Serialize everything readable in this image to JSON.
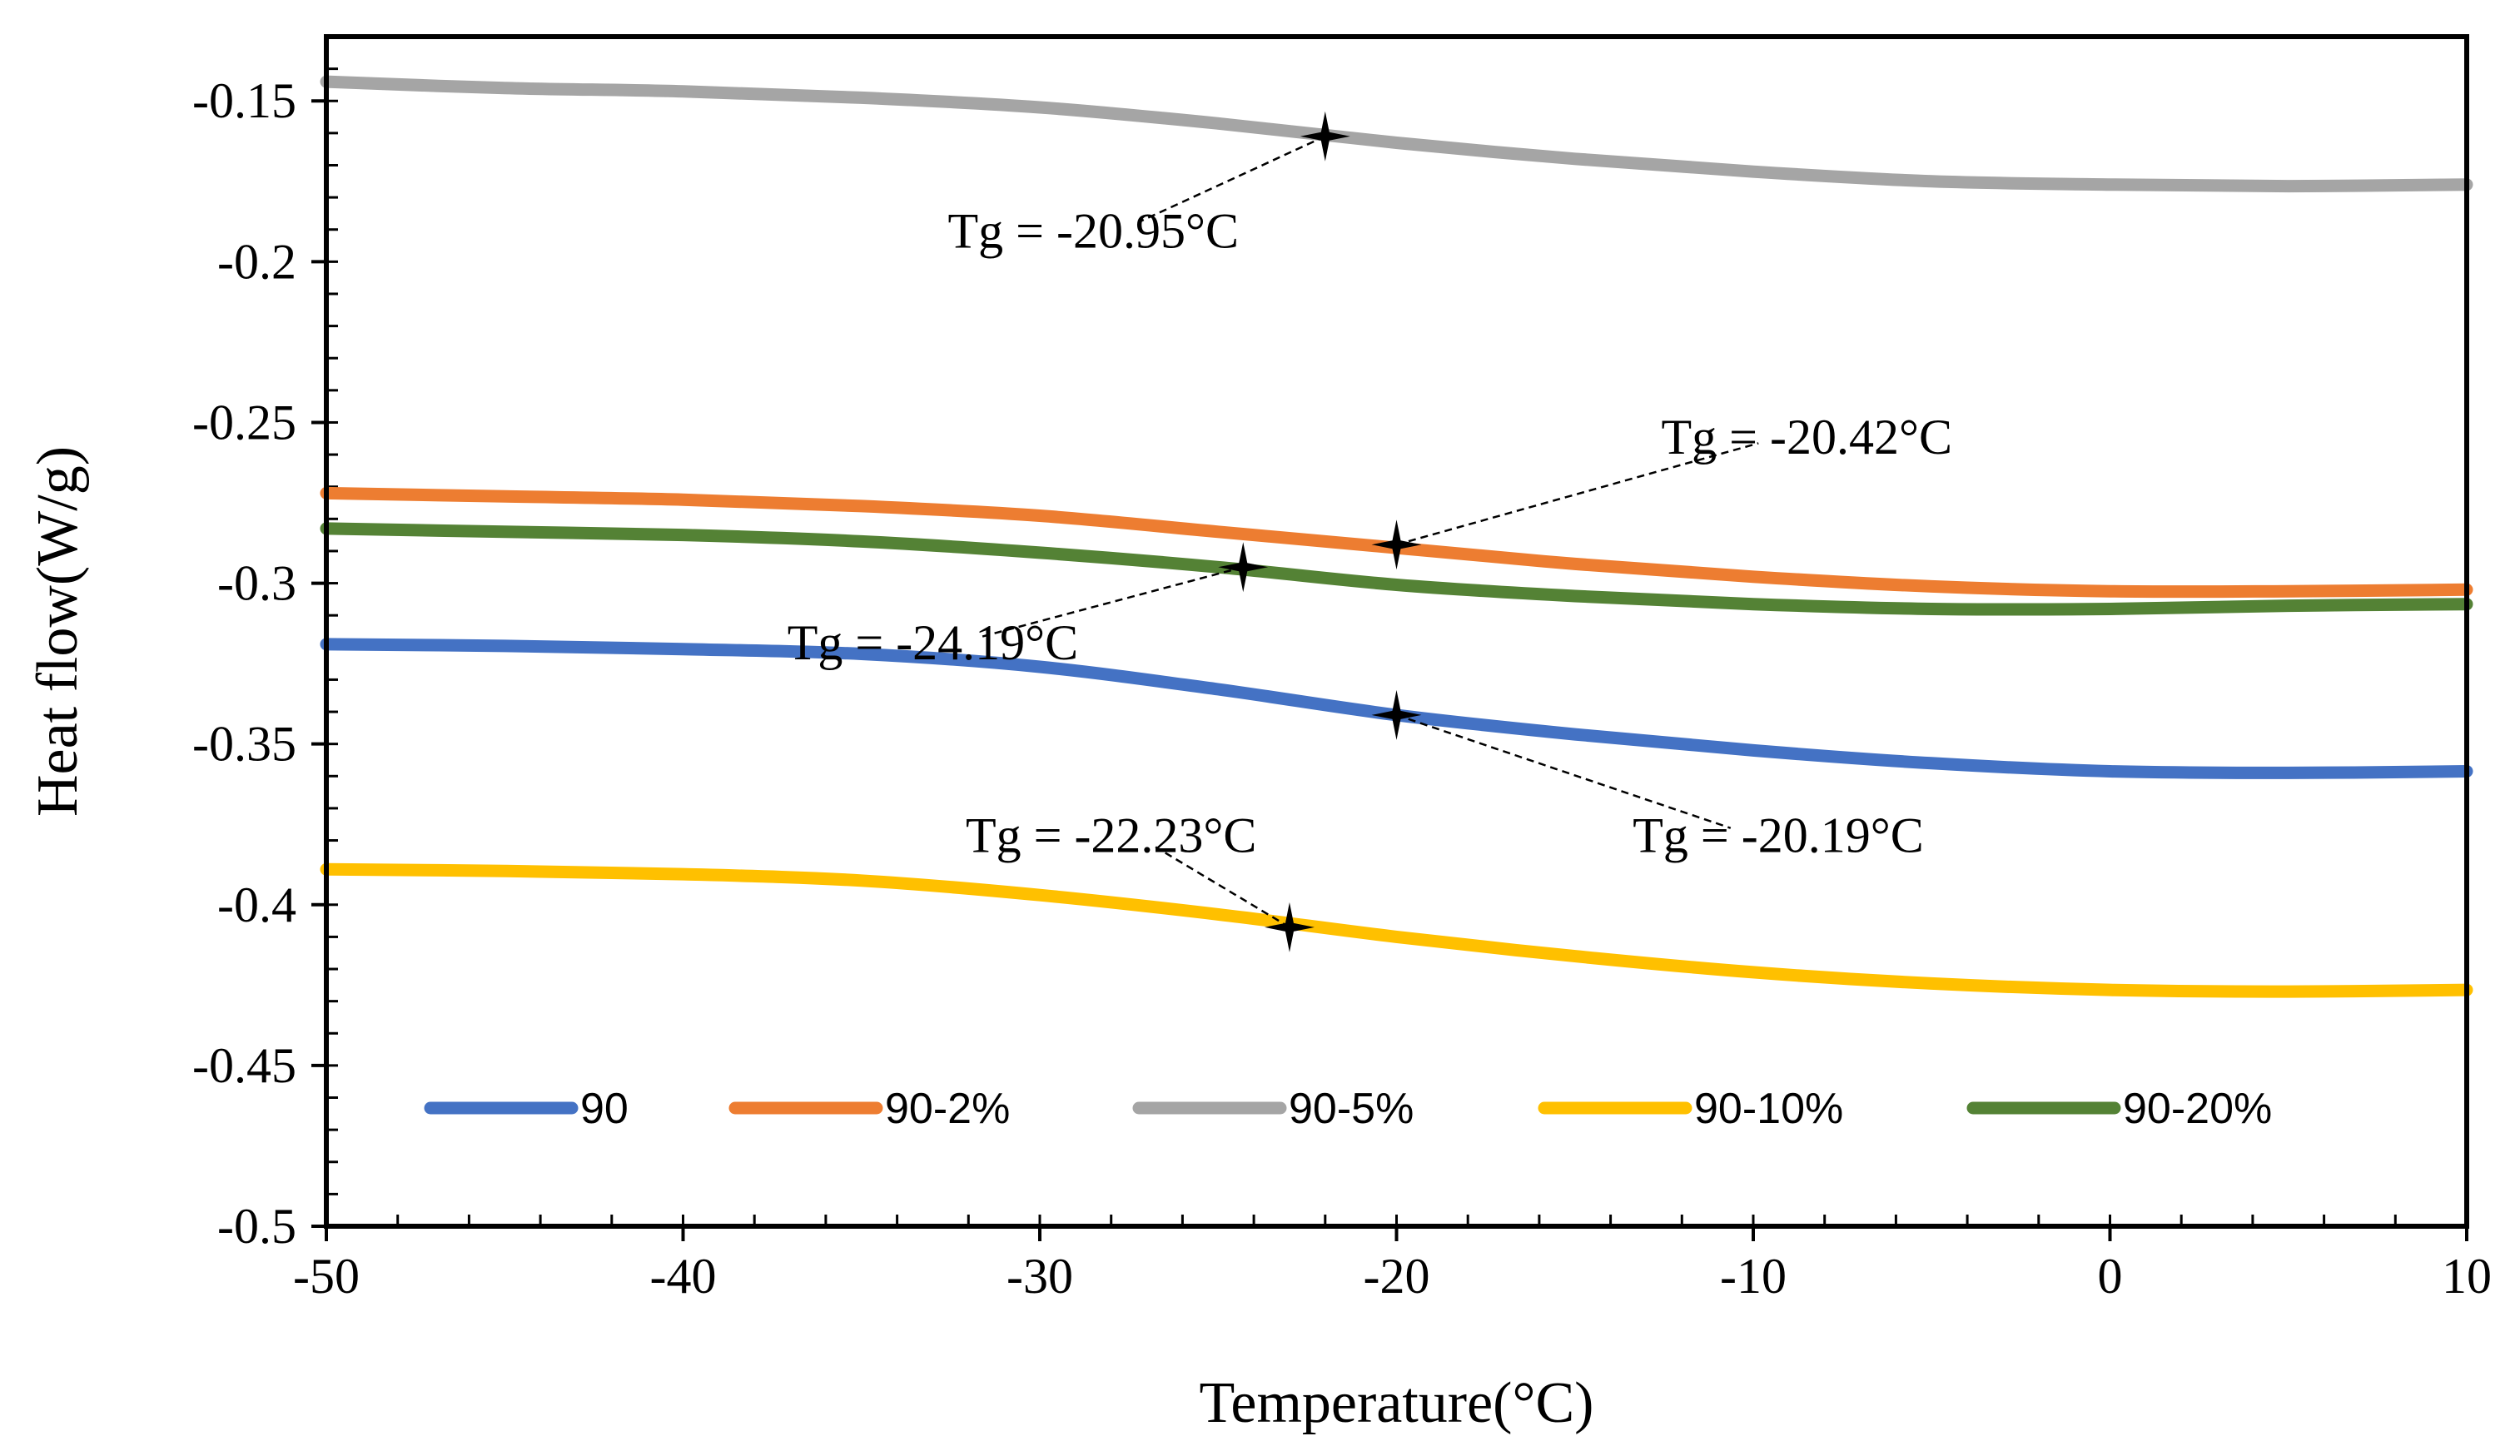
{
  "chart_data": {
    "type": "line",
    "xlabel": "Temperature(°C)",
    "ylabel": "Heat flow(W/g)",
    "xlim": [
      -50,
      10
    ],
    "ylim": [
      -0.5,
      -0.13
    ],
    "x_ticks": [
      -50,
      -40,
      -30,
      -20,
      -10,
      0,
      10
    ],
    "x_tick_labels": [
      "-50",
      "-40",
      "-30",
      "-20",
      "-10",
      "0",
      "10"
    ],
    "y_ticks": [
      -0.5,
      -0.45,
      -0.4,
      -0.35,
      -0.3,
      -0.25,
      -0.2,
      -0.15
    ],
    "y_tick_labels": [
      "-0.5",
      "-0.45",
      "-0.4",
      "-0.35",
      "-0.3",
      "-0.25",
      "-0.2",
      "-0.15"
    ],
    "grid": false,
    "legend_position": "bottom",
    "series": [
      {
        "name": "90",
        "color": "#4472C4",
        "points": [
          [
            -50,
            -0.319
          ],
          [
            -45,
            -0.3195
          ],
          [
            -40,
            -0.3205
          ],
          [
            -35,
            -0.322
          ],
          [
            -30,
            -0.326
          ],
          [
            -25,
            -0.333
          ],
          [
            -20,
            -0.341
          ],
          [
            -15,
            -0.347
          ],
          [
            -10,
            -0.352
          ],
          [
            -5,
            -0.356
          ],
          [
            0,
            -0.3585
          ],
          [
            5,
            -0.359
          ],
          [
            10,
            -0.3585
          ]
        ]
      },
      {
        "name": "90-2%",
        "color": "#ED7D31",
        "points": [
          [
            -50,
            -0.272
          ],
          [
            -45,
            -0.273
          ],
          [
            -40,
            -0.274
          ],
          [
            -35,
            -0.276
          ],
          [
            -30,
            -0.279
          ],
          [
            -25,
            -0.284
          ],
          [
            -20,
            -0.289
          ],
          [
            -15,
            -0.294
          ],
          [
            -10,
            -0.298
          ],
          [
            -5,
            -0.301
          ],
          [
            0,
            -0.3025
          ],
          [
            5,
            -0.3025
          ],
          [
            10,
            -0.302
          ]
        ]
      },
      {
        "name": "90-5%",
        "color": "#A5A5A5",
        "points": [
          [
            -50,
            -0.144
          ],
          [
            -45,
            -0.146
          ],
          [
            -40,
            -0.147
          ],
          [
            -35,
            -0.149
          ],
          [
            -30,
            -0.152
          ],
          [
            -25,
            -0.157
          ],
          [
            -20,
            -0.163
          ],
          [
            -15,
            -0.168
          ],
          [
            -10,
            -0.172
          ],
          [
            -5,
            -0.175
          ],
          [
            0,
            -0.176
          ],
          [
            5,
            -0.1765
          ],
          [
            10,
            -0.176
          ]
        ]
      },
      {
        "name": "90-10%",
        "color": "#FFC000",
        "points": [
          [
            -50,
            -0.389
          ],
          [
            -45,
            -0.3895
          ],
          [
            -40,
            -0.3905
          ],
          [
            -35,
            -0.3925
          ],
          [
            -30,
            -0.397
          ],
          [
            -25,
            -0.403
          ],
          [
            -20,
            -0.41
          ],
          [
            -15,
            -0.416
          ],
          [
            -10,
            -0.421
          ],
          [
            -5,
            -0.4245
          ],
          [
            0,
            -0.4265
          ],
          [
            5,
            -0.427
          ],
          [
            10,
            -0.4265
          ]
        ]
      },
      {
        "name": "90-20%",
        "color": "#548235",
        "points": [
          [
            -50,
            -0.283
          ],
          [
            -45,
            -0.284
          ],
          [
            -40,
            -0.285
          ],
          [
            -35,
            -0.287
          ],
          [
            -30,
            -0.2905
          ],
          [
            -25,
            -0.295
          ],
          [
            -20,
            -0.3005
          ],
          [
            -15,
            -0.304
          ],
          [
            -10,
            -0.3065
          ],
          [
            -5,
            -0.308
          ],
          [
            0,
            -0.308
          ],
          [
            5,
            -0.307
          ],
          [
            10,
            -0.3065
          ]
        ]
      }
    ],
    "annotations": [
      {
        "text": "Tg = -20.95°C",
        "point": [
          -22,
          -0.161
        ],
        "label_at": [
          -28.5,
          -0.1905
        ]
      },
      {
        "text": "Tg = -20.42°C",
        "point": [
          -20,
          -0.288
        ],
        "label_at": [
          -8.5,
          -0.2545
        ]
      },
      {
        "text": "Tg = -24.19°C",
        "point": [
          -24.3,
          -0.295
        ],
        "label_at": [
          -33,
          -0.3185
        ]
      },
      {
        "text": "Tg = -20.19°C",
        "point": [
          -20,
          -0.341
        ],
        "label_at": [
          -9.3,
          -0.3785
        ]
      },
      {
        "text": "Tg = -22.23°C",
        "point": [
          -23,
          -0.407
        ],
        "label_at": [
          -28,
          -0.3785
        ]
      }
    ]
  }
}
